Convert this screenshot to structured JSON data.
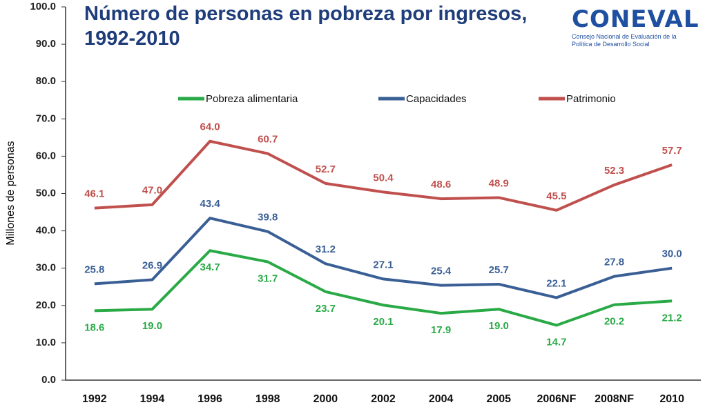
{
  "chart_data": {
    "type": "line",
    "title": "Número de personas en pobreza por ingresos, 1992-2010",
    "y_label": "Millones de personas",
    "categories": [
      "1992",
      "1994",
      "1996",
      "1998",
      "2000",
      "2002",
      "2004",
      "2005",
      "2006NF",
      "2008NF",
      "2010"
    ],
    "series": [
      {
        "name": "Pobreza alimentaria",
        "color": "#2aaa46",
        "values": [
          18.6,
          19.0,
          34.7,
          31.7,
          23.7,
          20.1,
          17.9,
          19.0,
          14.7,
          20.2,
          21.2
        ],
        "value_labels": [
          "18.6",
          "19.0",
          "34.7",
          "31.7",
          "23.7",
          "20.1",
          "17.9",
          "19.0",
          "14.7",
          "20.2",
          "21.2"
        ]
      },
      {
        "name": "Capacidades",
        "color": "#3a5f95",
        "values": [
          25.8,
          26.9,
          43.4,
          39.8,
          31.2,
          27.1,
          25.4,
          25.7,
          22.1,
          27.8,
          30.0
        ],
        "value_labels": [
          "25.8",
          "26.9",
          "43.4",
          "39.8",
          "31.2",
          "27.1",
          "25.4",
          "25.7",
          "22.1",
          "27.8",
          "30.0"
        ]
      },
      {
        "name": "Patrimonio",
        "color": "#c0504d",
        "values": [
          46.1,
          47.0,
          64.0,
          60.7,
          52.7,
          50.4,
          48.6,
          48.9,
          45.5,
          52.3,
          57.7
        ],
        "value_labels": [
          "46.1",
          "47.0",
          "64.0",
          "60.7",
          "52.7",
          "50.4",
          "48.6",
          "48.9",
          "45.5",
          "52.3",
          "57.7"
        ]
      }
    ],
    "ylim": [
      0,
      100
    ],
    "yticks": [
      {
        "value": 0,
        "label": "0.0"
      },
      {
        "value": 10,
        "label": "10.0"
      },
      {
        "value": 20,
        "label": "20.0"
      },
      {
        "value": 30,
        "label": "30.0"
      },
      {
        "value": 40,
        "label": "40.0"
      },
      {
        "value": 50,
        "label": "50.0"
      },
      {
        "value": 60,
        "label": "60.0"
      },
      {
        "value": 70,
        "label": "70.0"
      },
      {
        "value": 80,
        "label": "80.0"
      },
      {
        "value": 90,
        "label": "90.0"
      },
      {
        "value": 100,
        "label": "100.0"
      }
    ],
    "grid": false,
    "legend": "top"
  },
  "logo": {
    "name": "CONEVAL",
    "subtitle": "Consejo Nacional de Evaluación de la Política de Desarrollo Social"
  }
}
